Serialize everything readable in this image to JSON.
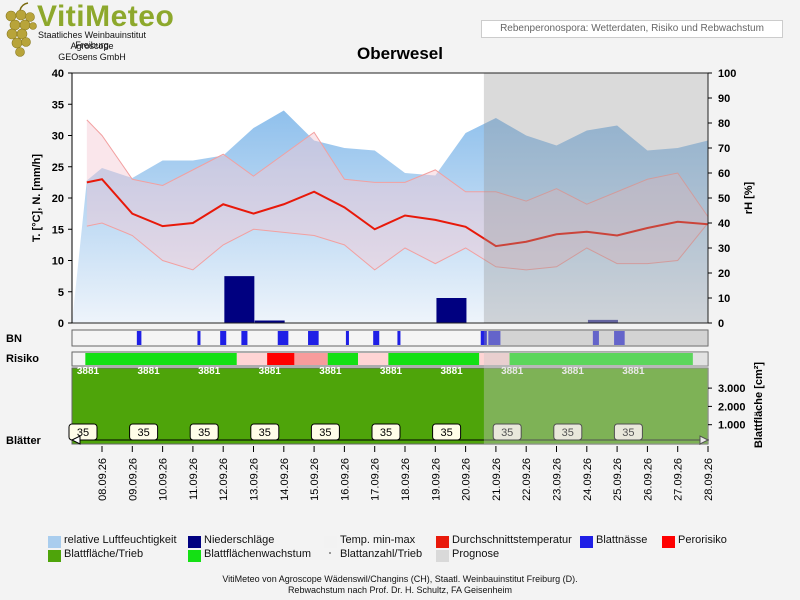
{
  "header": {
    "logo_name": "VitiMeteo",
    "logo_lines": [
      "Staatliches Weinbauinstitut Freiburg",
      "Agroscope",
      "GEOsens GmbH"
    ],
    "subtitle_box": "Rebenperonospora: Wetterdaten, Risiko und Rebwachstum"
  },
  "footer": {
    "line1": "VitiMeteo von Agroscope Wädenswil/Changins (CH), Staatl. Weinbauinstitut Freiburg (D).",
    "line2": "Rebwachstum nach Prof. Dr. H. Schultz, FA Geisenheim"
  },
  "legend": [
    {
      "label": "relative Luftfeuchtigkeit",
      "color": "#a9cdee"
    },
    {
      "label": "Niederschläge",
      "color": "#000080"
    },
    {
      "label": "Temp. min-max",
      "color": "#f2f2f2"
    },
    {
      "label": "Durchschnittstemperatur",
      "color": "#e8190a"
    },
    {
      "label": "Blattnässe",
      "color": "#1f1fe6"
    },
    {
      "label": "Perorisiko",
      "color": "#ff0000"
    },
    {
      "label": "Blattfläche/Trieb",
      "color": "#4ea40a"
    },
    {
      "label": "Blattflächenwachstum",
      "color": "#14e014"
    },
    {
      "label": "Blattanzahl/Trieb",
      "color": "#999999"
    },
    {
      "label": "Prognose",
      "color": "#d9d9d9"
    }
  ],
  "chart_data": {
    "type": "line",
    "title": "Oberwesel",
    "ylabel_left": "T. [°C], N. [mm/h]",
    "ylabel_right": "rH [%]",
    "ylim_left": [
      0,
      40
    ],
    "yticks_left": [
      0,
      5,
      10,
      15,
      20,
      25,
      30,
      35,
      40
    ],
    "ylim_right": [
      0,
      100
    ],
    "yticks_right": [
      0,
      10,
      20,
      30,
      40,
      50,
      60,
      70,
      80,
      90,
      100
    ],
    "x": [
      "08.09.26",
      "09.09.26",
      "10.09.26",
      "11.09.26",
      "12.09.26",
      "13.09.26",
      "14.09.26",
      "15.09.26",
      "16.09.26",
      "17.09.26",
      "18.09.26",
      "19.09.26",
      "20.09.26",
      "21.09.26",
      "22.09.26",
      "23.09.26",
      "24.09.26",
      "25.09.26",
      "26.09.26",
      "27.09.26",
      "28.09.26"
    ],
    "forecast_start": "21.09.26",
    "series": [
      {
        "name": "relative Luftfeuchtigkeit",
        "axis": "right",
        "kind": "area",
        "points": [
          [
            -0.5,
            57
          ],
          [
            0,
            62
          ],
          [
            1,
            58
          ],
          [
            2,
            65
          ],
          [
            3,
            65
          ],
          [
            4,
            67
          ],
          [
            5,
            78
          ],
          [
            6,
            85
          ],
          [
            7,
            73
          ],
          [
            8,
            70
          ],
          [
            9,
            69
          ],
          [
            10,
            60
          ],
          [
            11,
            59
          ],
          [
            12,
            76
          ],
          [
            13,
            82
          ],
          [
            14,
            75
          ],
          [
            15,
            71
          ],
          [
            16,
            77
          ],
          [
            17,
            79
          ],
          [
            18,
            69
          ],
          [
            19,
            70
          ],
          [
            20,
            73
          ]
        ]
      },
      {
        "name": "Temp. min-max",
        "axis": "left",
        "kind": "band",
        "upper": [
          [
            -0.5,
            32.5
          ],
          [
            0,
            30
          ],
          [
            1,
            23
          ],
          [
            2,
            22
          ],
          [
            3,
            24.5
          ],
          [
            4,
            27
          ],
          [
            5,
            23.5
          ],
          [
            6,
            27
          ],
          [
            7,
            30.5
          ],
          [
            8,
            23
          ],
          [
            9,
            22.5
          ],
          [
            10,
            22.5
          ],
          [
            11,
            24.5
          ],
          [
            12,
            21
          ],
          [
            13,
            21
          ],
          [
            14,
            19.5
          ],
          [
            15,
            21.5
          ],
          [
            16,
            19
          ],
          [
            17,
            21
          ],
          [
            18,
            23
          ],
          [
            19,
            24
          ],
          [
            20,
            17
          ]
        ],
        "lower": [
          [
            -0.5,
            15.5
          ],
          [
            0,
            16
          ],
          [
            1,
            14
          ],
          [
            2,
            10
          ],
          [
            3,
            8.5
          ],
          [
            4,
            12.5
          ],
          [
            5,
            15
          ],
          [
            6,
            14.5
          ],
          [
            7,
            14
          ],
          [
            8,
            12.5
          ],
          [
            9,
            8.5
          ],
          [
            10,
            12
          ],
          [
            11,
            9.5
          ],
          [
            12,
            12
          ],
          [
            13,
            9
          ],
          [
            14,
            8.5
          ],
          [
            15,
            9
          ],
          [
            16,
            12
          ],
          [
            17,
            9.5
          ],
          [
            18,
            9.5
          ],
          [
            19,
            10
          ],
          [
            20,
            16
          ]
        ]
      },
      {
        "name": "Durchschnittstemperatur",
        "axis": "left",
        "kind": "line",
        "points": [
          [
            -0.5,
            22.5
          ],
          [
            0,
            23
          ],
          [
            1,
            17.5
          ],
          [
            2,
            15.5
          ],
          [
            3,
            16
          ],
          [
            4,
            19
          ],
          [
            5,
            17.5
          ],
          [
            6,
            19
          ],
          [
            7,
            21
          ],
          [
            8,
            18.5
          ],
          [
            9,
            15
          ],
          [
            10,
            17.2
          ],
          [
            11,
            16.5
          ],
          [
            12,
            15.4
          ],
          [
            13,
            12.3
          ],
          [
            14,
            13
          ],
          [
            15,
            14.2
          ],
          [
            16,
            14.6
          ],
          [
            17,
            14
          ],
          [
            18,
            15.2
          ],
          [
            19,
            16.2
          ],
          [
            20,
            15.8
          ]
        ]
      },
      {
        "name": "Niederschläge",
        "axis": "left",
        "kind": "bar",
        "bars": [
          [
            4.5,
            7.5
          ],
          [
            5.5,
            0.4
          ],
          [
            11.5,
            4
          ],
          [
            16.5,
            0.5
          ]
        ]
      }
    ],
    "bn_rects": [
      [
        1.15,
        1.3
      ],
      [
        3.15,
        3.25
      ],
      [
        3.9,
        4.1
      ],
      [
        4.6,
        4.8
      ],
      [
        5.8,
        6.15
      ],
      [
        6.8,
        7.15
      ],
      [
        8.05,
        8.15
      ],
      [
        8.95,
        9.15
      ],
      [
        9.75,
        9.85
      ],
      [
        12.5,
        12.7
      ],
      [
        12.75,
        13.15
      ],
      [
        16.2,
        16.4
      ],
      [
        16.9,
        17.25
      ]
    ],
    "risk_segments": [
      {
        "from": -0.55,
        "to": 4.45,
        "color": "#14e014"
      },
      {
        "from": 4.45,
        "to": 5.45,
        "color": "#ffd4d4"
      },
      {
        "from": 5.45,
        "to": 6.35,
        "color": "#ff0000"
      },
      {
        "from": 6.35,
        "to": 7.45,
        "color": "#f79c9c"
      },
      {
        "from": 7.45,
        "to": 8.45,
        "color": "#14e014"
      },
      {
        "from": 8.45,
        "to": 9.45,
        "color": "#ffd4d4"
      },
      {
        "from": 9.45,
        "to": 12.45,
        "color": "#14e014"
      },
      {
        "from": 12.45,
        "to": 13.45,
        "color": "#ffd4d4"
      },
      {
        "from": 13.45,
        "to": 19.5,
        "color": "#14e014"
      }
    ],
    "risk_labels": [
      0,
      2,
      4,
      6,
      8,
      10,
      12,
      14,
      16,
      18
    ],
    "risk_label_text": "3881",
    "leaf_area_ylabel": "Blattfläche [cm²]",
    "leaf_area_ticks": [
      "1.000",
      "2.000",
      "3.000"
    ],
    "leaf_count_positions": [
      0,
      2,
      4,
      6,
      8,
      10,
      12,
      14,
      16,
      18
    ],
    "leaf_count_value": "35",
    "row_labels": {
      "bn": "BN",
      "risk": "Risiko",
      "leaves": "Blätter"
    }
  }
}
